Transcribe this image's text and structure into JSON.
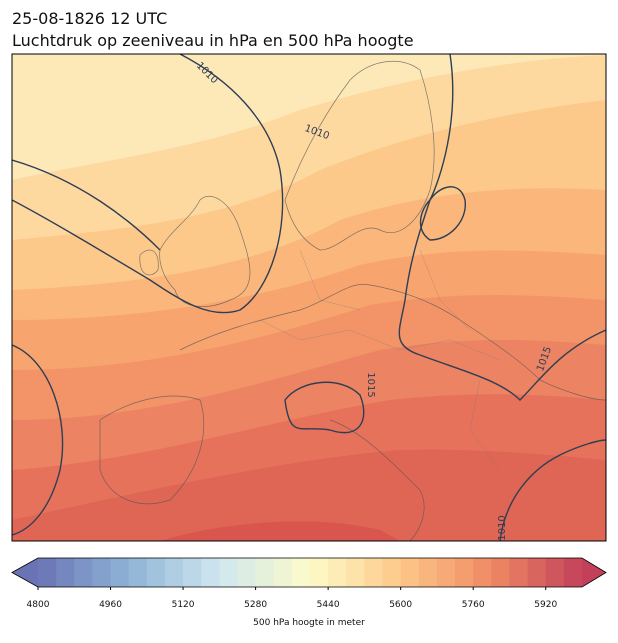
{
  "header": {
    "line1": "25-08-1826 12 UTC",
    "line2": "Luchtdruk op zeeniveau in hPa en 500 hPa hoogte"
  },
  "contour_labels": [
    "1010",
    "1010",
    "1015",
    "1015",
    "1010"
  ],
  "colorbar": {
    "label": "500 hPa hoogte in meter",
    "lim": [
      4800,
      6000
    ],
    "step": 40,
    "ticks": [
      4800,
      4960,
      5120,
      5280,
      5440,
      5600,
      5760,
      5920
    ],
    "colors": [
      "#6a74b5",
      "#8fb3d6",
      "#cfe7f0",
      "#fdfbc8",
      "#fdc889",
      "#f08a64",
      "#c2405a"
    ]
  }
}
